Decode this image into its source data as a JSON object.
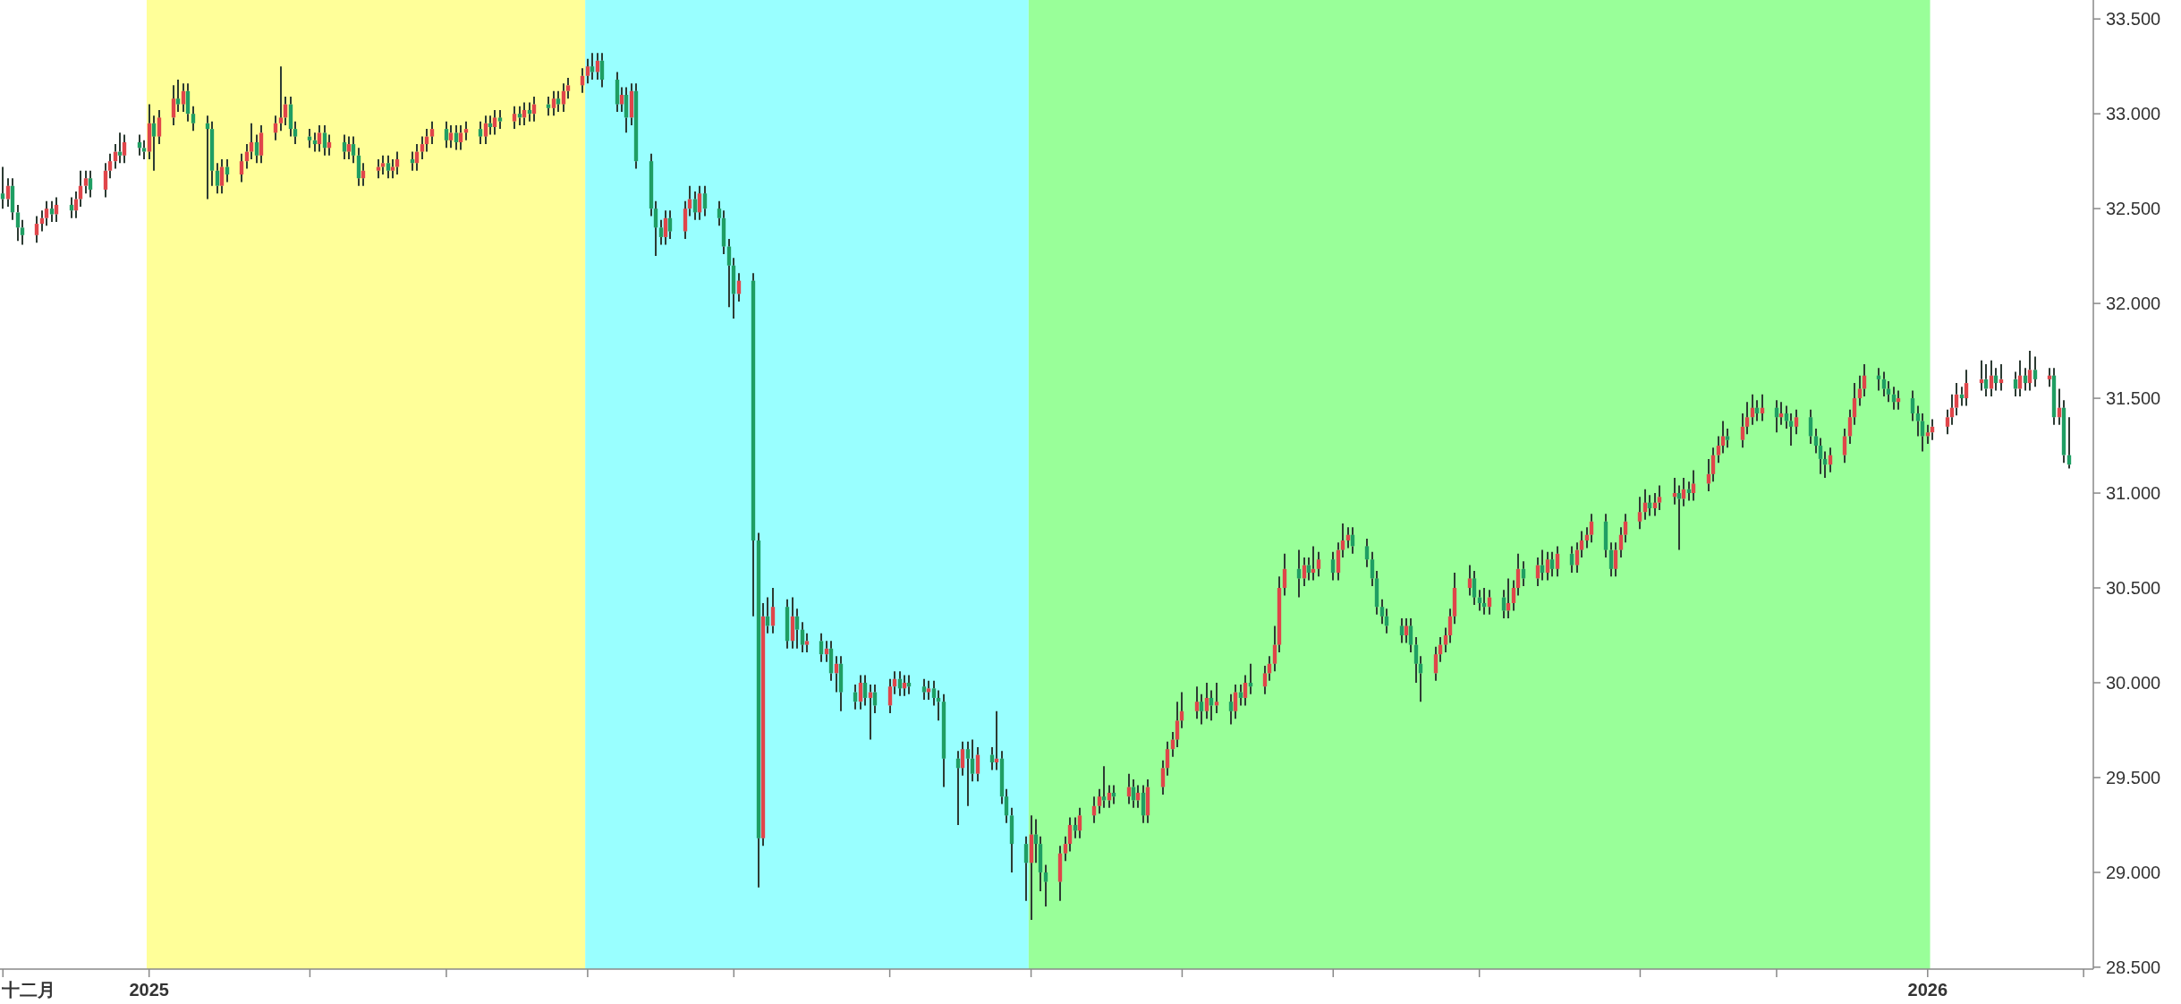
{
  "chart_data": {
    "type": "candlestick",
    "x": [
      "2024-12-02",
      "2024-12-03",
      "2024-12-04",
      "2024-12-05",
      "2024-12-06",
      "2024-12-09",
      "2024-12-10",
      "2024-12-11",
      "2024-12-12",
      "2024-12-13",
      "2024-12-16",
      "2024-12-17",
      "2024-12-18",
      "2024-12-19",
      "2024-12-20",
      "2024-12-23",
      "2024-12-24",
      "2024-12-25",
      "2024-12-26",
      "2024-12-27",
      "2024-12-30",
      "2024-12-31",
      "2025-01-01",
      "2025-01-02",
      "2025-01-03",
      "2025-01-06",
      "2025-01-07",
      "2025-01-08",
      "2025-01-09",
      "2025-01-10",
      "2025-01-13",
      "2025-01-14",
      "2025-01-15",
      "2025-01-16",
      "2025-01-17",
      "2025-01-20",
      "2025-01-21",
      "2025-01-22",
      "2025-01-23",
      "2025-01-24",
      "2025-01-27",
      "2025-01-28",
      "2025-01-29",
      "2025-01-30",
      "2025-01-31",
      "2025-02-03",
      "2025-02-04",
      "2025-02-05",
      "2025-02-06",
      "2025-02-07",
      "2025-02-10",
      "2025-02-11",
      "2025-02-12",
      "2025-02-13",
      "2025-02-14",
      "2025-02-17",
      "2025-02-18",
      "2025-02-19",
      "2025-02-20",
      "2025-02-21",
      "2025-02-24",
      "2025-02-25",
      "2025-02-26",
      "2025-02-27",
      "2025-02-28",
      "2025-03-03",
      "2025-03-04",
      "2025-03-05",
      "2025-03-06",
      "2025-03-07",
      "2025-03-10",
      "2025-03-11",
      "2025-03-12",
      "2025-03-13",
      "2025-03-14",
      "2025-03-17",
      "2025-03-18",
      "2025-03-19",
      "2025-03-20",
      "2025-03-21",
      "2025-03-24",
      "2025-03-25",
      "2025-03-26",
      "2025-03-27",
      "2025-03-28",
      "2025-03-31",
      "2025-04-01",
      "2025-04-02",
      "2025-04-03",
      "2025-04-04",
      "2025-04-07",
      "2025-04-08",
      "2025-04-09",
      "2025-04-10",
      "2025-04-11",
      "2025-04-14",
      "2025-04-15",
      "2025-04-16",
      "2025-04-17",
      "2025-04-18",
      "2025-04-21",
      "2025-04-22",
      "2025-04-23",
      "2025-04-24",
      "2025-04-25",
      "2025-04-28",
      "2025-04-29",
      "2025-04-30",
      "2025-05-01",
      "2025-05-02",
      "2025-05-05",
      "2025-05-06",
      "2025-05-07",
      "2025-05-08",
      "2025-05-09",
      "2025-05-12",
      "2025-05-13",
      "2025-05-14",
      "2025-05-15",
      "2025-05-16",
      "2025-05-19",
      "2025-05-20",
      "2025-05-21",
      "2025-05-22",
      "2025-05-23",
      "2025-05-26",
      "2025-05-27",
      "2025-05-28",
      "2025-05-29",
      "2025-05-30",
      "2025-06-02",
      "2025-06-03",
      "2025-06-04",
      "2025-06-05",
      "2025-06-06",
      "2025-06-09",
      "2025-06-10",
      "2025-06-11",
      "2025-06-12",
      "2025-06-13",
      "2025-06-16",
      "2025-06-17",
      "2025-06-18",
      "2025-06-19",
      "2025-06-20",
      "2025-06-23",
      "2025-06-24",
      "2025-06-25",
      "2025-06-26",
      "2025-06-27",
      "2025-06-30",
      "2025-07-01",
      "2025-07-02",
      "2025-07-03",
      "2025-07-04",
      "2025-07-07",
      "2025-07-08",
      "2025-07-09",
      "2025-07-10",
      "2025-07-11",
      "2025-07-14",
      "2025-07-15",
      "2025-07-16",
      "2025-07-17",
      "2025-07-18",
      "2025-07-21",
      "2025-07-22",
      "2025-07-23",
      "2025-07-24",
      "2025-07-25",
      "2025-07-28",
      "2025-07-29",
      "2025-07-30",
      "2025-07-31",
      "2025-08-01",
      "2025-08-04",
      "2025-08-05",
      "2025-08-06",
      "2025-08-07",
      "2025-08-08",
      "2025-08-11",
      "2025-08-12",
      "2025-08-13",
      "2025-08-14",
      "2025-08-15",
      "2025-08-18",
      "2025-08-19",
      "2025-08-20",
      "2025-08-21",
      "2025-08-22",
      "2025-08-25",
      "2025-08-26",
      "2025-08-27",
      "2025-08-28",
      "2025-08-29",
      "2025-09-01",
      "2025-09-02",
      "2025-09-03",
      "2025-09-04",
      "2025-09-05",
      "2025-09-08",
      "2025-09-09",
      "2025-09-10",
      "2025-09-11",
      "2025-09-12",
      "2025-09-15",
      "2025-09-16",
      "2025-09-17",
      "2025-09-18",
      "2025-09-19",
      "2025-09-22",
      "2025-09-23",
      "2025-09-24",
      "2025-09-25",
      "2025-09-26",
      "2025-09-29",
      "2025-09-30",
      "2025-10-01",
      "2025-10-02",
      "2025-10-03",
      "2025-10-06",
      "2025-10-07",
      "2025-10-08",
      "2025-10-09",
      "2025-10-10",
      "2025-10-13",
      "2025-10-14",
      "2025-10-15",
      "2025-10-16",
      "2025-10-17",
      "2025-10-20",
      "2025-10-21",
      "2025-10-22",
      "2025-10-23",
      "2025-10-24",
      "2025-10-27",
      "2025-10-28",
      "2025-10-29",
      "2025-10-30",
      "2025-10-31",
      "2025-11-03",
      "2025-11-04",
      "2025-11-05",
      "2025-11-06",
      "2025-11-07",
      "2025-11-10",
      "2025-11-11",
      "2025-11-12",
      "2025-11-13",
      "2025-11-14",
      "2025-11-17",
      "2025-11-18",
      "2025-11-19",
      "2025-11-20",
      "2025-11-21",
      "2025-11-24",
      "2025-11-25",
      "2025-11-26",
      "2025-11-27",
      "2025-11-28",
      "2025-12-01",
      "2025-12-02",
      "2025-12-03",
      "2025-12-04",
      "2025-12-05",
      "2025-12-08",
      "2025-12-09",
      "2025-12-10",
      "2025-12-11",
      "2025-12-12",
      "2025-12-15",
      "2025-12-16",
      "2025-12-17",
      "2025-12-18",
      "2025-12-19",
      "2025-12-22",
      "2025-12-23",
      "2025-12-24",
      "2025-12-25",
      "2025-12-26",
      "2025-12-29",
      "2025-12-30",
      "2025-12-31",
      "2026-01-01",
      "2026-01-02",
      "2026-01-05",
      "2026-01-06",
      "2026-01-07",
      "2026-01-08",
      "2026-01-09",
      "2026-01-12",
      "2026-01-13",
      "2026-01-14",
      "2026-01-15",
      "2026-01-16",
      "2026-01-19",
      "2026-01-20",
      "2026-01-21",
      "2026-01-22",
      "2026-01-23",
      "2026-01-26",
      "2026-01-27",
      "2026-01-28",
      "2026-01-29",
      "2026-01-30"
    ],
    "ohlc": [
      [
        32.58,
        32.72,
        32.5,
        32.55
      ],
      [
        32.55,
        32.66,
        32.51,
        32.62
      ],
      [
        32.62,
        32.66,
        32.44,
        32.48
      ],
      [
        32.48,
        32.52,
        32.33,
        32.4
      ],
      [
        32.4,
        32.44,
        32.31,
        32.36
      ],
      [
        32.36,
        32.46,
        32.32,
        32.42
      ],
      [
        32.42,
        32.49,
        32.38,
        32.45
      ],
      [
        32.45,
        32.54,
        32.41,
        32.5
      ],
      [
        32.5,
        32.54,
        32.43,
        32.47
      ],
      [
        32.47,
        32.56,
        32.43,
        32.52
      ],
      [
        32.52,
        32.56,
        32.45,
        32.49
      ],
      [
        32.49,
        32.59,
        32.45,
        32.55
      ],
      [
        32.55,
        32.7,
        32.51,
        32.62
      ],
      [
        32.62,
        32.7,
        32.58,
        32.66
      ],
      [
        32.66,
        32.7,
        32.56,
        32.6
      ],
      [
        32.6,
        32.74,
        32.56,
        32.7
      ],
      [
        32.7,
        32.79,
        32.66,
        32.75
      ],
      [
        32.75,
        32.84,
        32.71,
        32.8
      ],
      [
        32.8,
        32.9,
        32.74,
        32.78
      ],
      [
        32.78,
        32.89,
        32.74,
        32.85
      ],
      [
        32.85,
        32.89,
        32.78,
        32.82
      ],
      [
        32.82,
        32.86,
        32.76,
        32.8
      ],
      [
        32.8,
        33.05,
        32.76,
        32.95
      ],
      [
        32.95,
        32.99,
        32.7,
        32.88
      ],
      [
        32.88,
        33.02,
        32.84,
        32.98
      ],
      [
        32.98,
        33.15,
        32.94,
        33.08
      ],
      [
        33.08,
        33.18,
        33.01,
        33.05
      ],
      [
        33.05,
        33.16,
        33.01,
        33.12
      ],
      [
        33.12,
        33.16,
        32.96,
        33.0
      ],
      [
        33.0,
        33.04,
        32.91,
        32.95
      ],
      [
        32.95,
        32.99,
        32.55,
        32.92
      ],
      [
        32.92,
        32.96,
        32.62,
        32.7
      ],
      [
        32.7,
        32.74,
        32.58,
        32.62
      ],
      [
        32.62,
        32.76,
        32.58,
        32.72
      ],
      [
        32.72,
        32.76,
        32.64,
        32.68
      ],
      [
        32.68,
        32.79,
        32.64,
        32.75
      ],
      [
        32.75,
        32.84,
        32.71,
        32.8
      ],
      [
        32.8,
        32.95,
        32.76,
        32.85
      ],
      [
        32.85,
        32.89,
        32.74,
        32.78
      ],
      [
        32.78,
        32.94,
        32.74,
        32.9
      ],
      [
        32.9,
        32.99,
        32.86,
        32.95
      ],
      [
        32.95,
        33.25,
        32.91,
        32.98
      ],
      [
        32.98,
        33.09,
        32.94,
        33.05
      ],
      [
        33.05,
        33.09,
        32.88,
        32.92
      ],
      [
        32.92,
        32.96,
        32.84,
        32.88
      ],
      [
        32.88,
        32.92,
        32.82,
        32.86
      ],
      [
        32.86,
        32.9,
        32.8,
        32.84
      ],
      [
        32.84,
        32.94,
        32.8,
        32.9
      ],
      [
        32.9,
        32.94,
        32.78,
        32.82
      ],
      [
        32.82,
        32.89,
        32.78,
        32.85
      ],
      [
        32.85,
        32.89,
        32.76,
        32.8
      ],
      [
        32.8,
        32.88,
        32.76,
        32.84
      ],
      [
        32.84,
        32.88,
        32.74,
        32.78
      ],
      [
        32.78,
        32.82,
        32.62,
        32.66
      ],
      [
        32.66,
        32.74,
        32.62,
        32.7
      ],
      [
        32.7,
        32.76,
        32.66,
        32.72
      ],
      [
        32.72,
        32.78,
        32.68,
        32.74
      ],
      [
        32.74,
        32.78,
        32.66,
        32.7
      ],
      [
        32.7,
        32.76,
        32.66,
        32.72
      ],
      [
        32.72,
        32.8,
        32.68,
        32.76
      ],
      [
        32.76,
        32.8,
        32.7,
        32.74
      ],
      [
        32.74,
        32.84,
        32.7,
        32.8
      ],
      [
        32.8,
        32.88,
        32.76,
        32.84
      ],
      [
        32.84,
        32.92,
        32.8,
        32.88
      ],
      [
        32.88,
        32.96,
        32.84,
        32.92
      ],
      [
        32.92,
        32.96,
        32.82,
        32.86
      ],
      [
        32.86,
        32.94,
        32.82,
        32.9
      ],
      [
        32.9,
        32.94,
        32.81,
        32.85
      ],
      [
        32.85,
        32.94,
        32.81,
        32.9
      ],
      [
        32.9,
        32.96,
        32.86,
        32.92
      ],
      [
        32.92,
        32.96,
        32.84,
        32.88
      ],
      [
        32.88,
        32.99,
        32.84,
        32.95
      ],
      [
        32.95,
        32.99,
        32.89,
        32.93
      ],
      [
        32.93,
        33.02,
        32.89,
        32.98
      ],
      [
        32.98,
        33.02,
        32.92,
        32.96
      ],
      [
        32.96,
        33.04,
        32.92,
        33.0
      ],
      [
        33.0,
        33.04,
        32.94,
        32.98
      ],
      [
        32.98,
        33.06,
        32.94,
        33.02
      ],
      [
        33.02,
        33.06,
        32.96,
        33.0
      ],
      [
        33.0,
        33.09,
        32.96,
        33.05
      ],
      [
        33.05,
        33.09,
        32.99,
        33.03
      ],
      [
        33.03,
        33.12,
        32.99,
        33.08
      ],
      [
        33.08,
        33.12,
        33.01,
        33.05
      ],
      [
        33.05,
        33.16,
        33.01,
        33.12
      ],
      [
        33.12,
        33.19,
        33.08,
        33.15
      ],
      [
        33.15,
        33.24,
        33.11,
        33.2
      ],
      [
        33.2,
        33.29,
        33.16,
        33.25
      ],
      [
        33.25,
        33.32,
        33.18,
        33.22
      ],
      [
        33.22,
        33.32,
        33.18,
        33.28
      ],
      [
        33.28,
        33.32,
        33.14,
        33.18
      ],
      [
        33.18,
        33.22,
        33.01,
        33.05
      ],
      [
        33.05,
        33.14,
        33.01,
        33.1
      ],
      [
        33.1,
        33.14,
        32.9,
        32.98
      ],
      [
        32.98,
        33.16,
        32.94,
        33.12
      ],
      [
        33.12,
        33.16,
        32.71,
        32.75
      ],
      [
        32.75,
        32.79,
        32.46,
        32.5
      ],
      [
        32.5,
        32.54,
        32.25,
        32.4
      ],
      [
        32.4,
        32.44,
        32.31,
        32.35
      ],
      [
        32.35,
        32.49,
        32.31,
        32.45
      ],
      [
        32.45,
        32.49,
        32.34,
        32.38
      ],
      [
        32.38,
        32.54,
        32.34,
        32.5
      ],
      [
        32.5,
        32.62,
        32.46,
        32.55
      ],
      [
        32.55,
        32.59,
        32.44,
        32.48
      ],
      [
        32.48,
        32.62,
        32.44,
        32.58
      ],
      [
        32.58,
        32.62,
        32.46,
        32.5
      ],
      [
        32.5,
        32.54,
        32.41,
        32.45
      ],
      [
        32.45,
        32.49,
        32.26,
        32.3
      ],
      [
        32.3,
        32.34,
        31.98,
        32.2
      ],
      [
        32.2,
        32.24,
        31.92,
        32.05
      ],
      [
        32.05,
        32.16,
        32.01,
        32.12
      ],
      [
        32.12,
        32.16,
        30.35,
        30.75
      ],
      [
        30.75,
        30.79,
        28.92,
        29.18
      ],
      [
        29.18,
        30.42,
        29.14,
        30.35
      ],
      [
        30.35,
        30.45,
        30.26,
        30.3
      ],
      [
        30.3,
        30.5,
        30.26,
        30.4
      ],
      [
        30.4,
        30.44,
        30.18,
        30.22
      ],
      [
        30.22,
        30.45,
        30.18,
        30.35
      ],
      [
        30.35,
        30.39,
        30.18,
        30.28
      ],
      [
        30.28,
        30.32,
        30.16,
        30.2
      ],
      [
        30.2,
        30.26,
        30.16,
        30.22
      ],
      [
        30.22,
        30.26,
        30.11,
        30.15
      ],
      [
        30.15,
        30.22,
        30.11,
        30.18
      ],
      [
        30.18,
        30.22,
        30.01,
        30.05
      ],
      [
        30.05,
        30.14,
        29.95,
        30.1
      ],
      [
        30.1,
        30.14,
        29.85,
        29.95
      ],
      [
        29.95,
        29.99,
        29.86,
        29.9
      ],
      [
        29.9,
        30.04,
        29.86,
        30.0
      ],
      [
        30.0,
        30.04,
        29.88,
        29.92
      ],
      [
        29.92,
        29.99,
        29.7,
        29.95
      ],
      [
        29.95,
        29.99,
        29.84,
        29.88
      ],
      [
        29.88,
        30.02,
        29.84,
        29.98
      ],
      [
        29.98,
        30.06,
        29.94,
        30.02
      ],
      [
        30.02,
        30.06,
        29.93,
        29.97
      ],
      [
        29.97,
        30.04,
        29.93,
        30.0
      ],
      [
        30.0,
        30.04,
        29.94,
        29.98
      ],
      [
        29.98,
        30.02,
        29.91,
        29.95
      ],
      [
        29.95,
        30.01,
        29.91,
        29.97
      ],
      [
        29.97,
        30.01,
        29.88,
        29.92
      ],
      [
        29.92,
        29.96,
        29.8,
        29.9
      ],
      [
        29.9,
        29.94,
        29.45,
        29.6
      ],
      [
        29.6,
        29.64,
        29.25,
        29.55
      ],
      [
        29.55,
        29.69,
        29.51,
        29.65
      ],
      [
        29.65,
        29.69,
        29.35,
        29.6
      ],
      [
        29.6,
        29.7,
        29.48,
        29.52
      ],
      [
        29.52,
        29.66,
        29.48,
        29.62
      ],
      [
        29.62,
        29.66,
        29.54,
        29.58
      ],
      [
        29.58,
        29.85,
        29.54,
        29.6
      ],
      [
        29.6,
        29.64,
        29.36,
        29.4
      ],
      [
        29.4,
        29.44,
        29.26,
        29.3
      ],
      [
        29.3,
        29.34,
        29.0,
        29.15
      ],
      [
        29.15,
        29.19,
        28.85,
        29.05
      ],
      [
        29.05,
        29.3,
        28.75,
        29.2
      ],
      [
        29.2,
        29.28,
        29.05,
        29.15
      ],
      [
        29.15,
        29.19,
        28.9,
        29.0
      ],
      [
        29.0,
        29.04,
        28.82,
        28.95
      ],
      [
        28.95,
        29.14,
        28.85,
        29.1
      ],
      [
        29.1,
        29.19,
        29.06,
        29.15
      ],
      [
        29.15,
        29.29,
        29.11,
        29.25
      ],
      [
        29.25,
        29.29,
        29.18,
        29.22
      ],
      [
        29.22,
        29.34,
        29.18,
        29.3
      ],
      [
        29.3,
        29.4,
        29.26,
        29.35
      ],
      [
        29.35,
        29.44,
        29.31,
        29.4
      ],
      [
        29.4,
        29.56,
        29.34,
        29.38
      ],
      [
        29.38,
        29.46,
        29.34,
        29.42
      ],
      [
        29.42,
        29.46,
        29.36,
        29.4
      ],
      [
        29.4,
        29.52,
        29.36,
        29.45
      ],
      [
        29.45,
        29.49,
        29.34,
        29.38
      ],
      [
        29.38,
        29.46,
        29.34,
        29.42
      ],
      [
        29.42,
        29.46,
        29.26,
        29.3
      ],
      [
        29.3,
        29.49,
        29.26,
        29.45
      ],
      [
        29.45,
        29.59,
        29.41,
        29.55
      ],
      [
        29.55,
        29.69,
        29.51,
        29.65
      ],
      [
        29.65,
        29.74,
        29.61,
        29.7
      ],
      [
        29.7,
        29.9,
        29.66,
        29.8
      ],
      [
        29.8,
        29.95,
        29.76,
        29.85
      ],
      [
        29.85,
        29.98,
        29.81,
        29.9
      ],
      [
        29.9,
        29.94,
        29.78,
        29.85
      ],
      [
        29.85,
        30.0,
        29.81,
        29.92
      ],
      [
        29.92,
        29.96,
        29.8,
        29.88
      ],
      [
        29.88,
        30.0,
        29.84,
        29.9
      ],
      [
        29.9,
        29.94,
        29.78,
        29.85
      ],
      [
        29.85,
        29.99,
        29.81,
        29.95
      ],
      [
        29.95,
        29.99,
        29.88,
        29.92
      ],
      [
        29.92,
        30.04,
        29.88,
        30.0
      ],
      [
        30.0,
        30.1,
        29.94,
        29.98
      ],
      [
        29.98,
        30.09,
        29.94,
        30.05
      ],
      [
        30.05,
        30.14,
        30.01,
        30.1
      ],
      [
        30.1,
        30.3,
        30.06,
        30.2
      ],
      [
        30.2,
        30.56,
        30.16,
        30.5
      ],
      [
        30.5,
        30.68,
        30.46,
        30.6
      ],
      [
        30.6,
        30.7,
        30.45,
        30.55
      ],
      [
        30.55,
        30.66,
        30.51,
        30.62
      ],
      [
        30.62,
        30.66,
        30.54,
        30.58
      ],
      [
        30.58,
        30.72,
        30.54,
        30.6
      ],
      [
        30.6,
        30.69,
        30.56,
        30.65
      ],
      [
        30.65,
        30.69,
        30.54,
        30.58
      ],
      [
        30.58,
        30.74,
        30.54,
        30.7
      ],
      [
        30.7,
        30.84,
        30.66,
        30.75
      ],
      [
        30.75,
        30.82,
        30.71,
        30.78
      ],
      [
        30.78,
        30.82,
        30.68,
        30.72
      ],
      [
        30.72,
        30.76,
        30.61,
        30.65
      ],
      [
        30.65,
        30.69,
        30.51,
        30.55
      ],
      [
        30.55,
        30.59,
        30.36,
        30.4
      ],
      [
        30.4,
        30.44,
        30.31,
        30.35
      ],
      [
        30.35,
        30.39,
        30.26,
        30.3
      ],
      [
        30.3,
        30.34,
        30.21,
        30.25
      ],
      [
        30.25,
        30.34,
        30.21,
        30.3
      ],
      [
        30.3,
        30.34,
        30.16,
        30.2
      ],
      [
        30.2,
        30.24,
        30.0,
        30.1
      ],
      [
        30.1,
        30.14,
        29.9,
        30.05
      ],
      [
        30.05,
        30.19,
        30.01,
        30.15
      ],
      [
        30.15,
        30.24,
        30.11,
        30.2
      ],
      [
        30.2,
        30.29,
        30.16,
        30.25
      ],
      [
        30.25,
        30.39,
        30.21,
        30.35
      ],
      [
        30.35,
        30.58,
        30.31,
        30.5
      ],
      [
        30.5,
        30.62,
        30.46,
        30.55
      ],
      [
        30.55,
        30.59,
        30.41,
        30.45
      ],
      [
        30.45,
        30.49,
        30.38,
        30.42
      ],
      [
        30.42,
        30.5,
        30.36,
        30.4
      ],
      [
        30.4,
        30.49,
        30.36,
        30.45
      ],
      [
        30.45,
        30.49,
        30.34,
        30.38
      ],
      [
        30.38,
        30.55,
        30.34,
        30.42
      ],
      [
        30.42,
        30.54,
        30.38,
        30.5
      ],
      [
        30.5,
        30.68,
        30.46,
        30.6
      ],
      [
        30.6,
        30.64,
        30.51,
        30.55
      ],
      [
        30.55,
        30.66,
        30.51,
        30.62
      ],
      [
        30.62,
        30.7,
        30.54,
        30.58
      ],
      [
        30.58,
        30.69,
        30.54,
        30.65
      ],
      [
        30.65,
        30.69,
        30.56,
        30.6
      ],
      [
        30.6,
        30.72,
        30.56,
        30.68
      ],
      [
        30.68,
        30.72,
        30.58,
        30.62
      ],
      [
        30.62,
        30.74,
        30.58,
        30.7
      ],
      [
        30.7,
        30.8,
        30.66,
        30.75
      ],
      [
        30.75,
        30.82,
        30.71,
        30.78
      ],
      [
        30.78,
        30.89,
        30.74,
        30.85
      ],
      [
        30.85,
        30.89,
        30.66,
        30.7
      ],
      [
        30.7,
        30.74,
        30.56,
        30.6
      ],
      [
        30.6,
        30.74,
        30.56,
        30.7
      ],
      [
        30.7,
        30.82,
        30.66,
        30.78
      ],
      [
        30.78,
        30.89,
        30.74,
        30.85
      ],
      [
        30.85,
        30.98,
        30.81,
        30.9
      ],
      [
        30.9,
        31.02,
        30.86,
        30.95
      ],
      [
        30.95,
        30.99,
        30.88,
        30.92
      ],
      [
        30.92,
        31.0,
        30.88,
        30.95
      ],
      [
        30.95,
        31.04,
        30.91,
        30.98
      ],
      [
        30.98,
        31.08,
        30.94,
        31.0
      ],
      [
        31.0,
        31.04,
        30.7,
        30.97
      ],
      [
        30.97,
        31.08,
        30.93,
        31.02
      ],
      [
        31.02,
        31.06,
        30.96,
        31.0
      ],
      [
        31.0,
        31.12,
        30.96,
        31.05
      ],
      [
        31.05,
        31.18,
        31.01,
        31.1
      ],
      [
        31.1,
        31.24,
        31.06,
        31.2
      ],
      [
        31.2,
        31.3,
        31.16,
        31.25
      ],
      [
        31.25,
        31.38,
        31.21,
        31.3
      ],
      [
        31.3,
        31.34,
        31.24,
        31.28
      ],
      [
        31.28,
        31.42,
        31.24,
        31.35
      ],
      [
        31.35,
        31.48,
        31.31,
        31.4
      ],
      [
        31.4,
        31.52,
        31.36,
        31.45
      ],
      [
        31.45,
        31.49,
        31.38,
        31.42
      ],
      [
        31.42,
        31.52,
        31.38,
        31.45
      ],
      [
        31.45,
        31.49,
        31.32,
        31.4
      ],
      [
        31.4,
        31.48,
        31.36,
        31.42
      ],
      [
        31.42,
        31.46,
        31.34,
        31.38
      ],
      [
        31.38,
        31.42,
        31.25,
        31.35
      ],
      [
        31.35,
        31.44,
        31.31,
        31.4
      ],
      [
        31.4,
        31.44,
        31.26,
        31.3
      ],
      [
        31.3,
        31.34,
        31.21,
        31.25
      ],
      [
        31.25,
        31.29,
        31.1,
        31.18
      ],
      [
        31.18,
        31.22,
        31.08,
        31.15
      ],
      [
        31.15,
        31.24,
        31.11,
        31.2
      ],
      [
        31.2,
        31.34,
        31.16,
        31.3
      ],
      [
        31.3,
        31.44,
        31.26,
        31.4
      ],
      [
        31.4,
        31.58,
        31.36,
        31.5
      ],
      [
        31.5,
        31.62,
        31.46,
        31.55
      ],
      [
        31.55,
        31.68,
        31.51,
        31.62
      ],
      [
        31.62,
        31.66,
        31.54,
        31.6
      ],
      [
        31.6,
        31.64,
        31.51,
        31.55
      ],
      [
        31.55,
        31.59,
        31.48,
        31.52
      ],
      [
        31.52,
        31.56,
        31.44,
        31.48
      ],
      [
        31.48,
        31.54,
        31.44,
        31.5
      ],
      [
        31.5,
        31.54,
        31.38,
        31.42
      ],
      [
        31.42,
        31.46,
        31.3,
        31.38
      ],
      [
        31.38,
        31.42,
        31.22,
        31.3
      ],
      [
        31.3,
        31.36,
        31.26,
        31.32
      ],
      [
        31.32,
        31.39,
        31.28,
        31.35
      ],
      [
        31.35,
        31.44,
        31.31,
        31.4
      ],
      [
        31.4,
        31.52,
        31.36,
        31.45
      ],
      [
        31.45,
        31.58,
        31.41,
        31.52
      ],
      [
        31.52,
        31.56,
        31.46,
        31.5
      ],
      [
        31.5,
        31.65,
        31.46,
        31.58
      ],
      [
        31.58,
        31.7,
        31.54,
        31.6
      ],
      [
        31.6,
        31.68,
        31.51,
        31.55
      ],
      [
        31.55,
        31.7,
        31.51,
        31.62
      ],
      [
        31.62,
        31.66,
        31.54,
        31.58
      ],
      [
        31.58,
        31.68,
        31.54,
        31.6
      ],
      [
        31.6,
        31.64,
        31.51,
        31.55
      ],
      [
        31.55,
        31.7,
        31.51,
        31.62
      ],
      [
        31.62,
        31.66,
        31.54,
        31.58
      ],
      [
        31.58,
        31.75,
        31.54,
        31.65
      ],
      [
        31.65,
        31.72,
        31.56,
        31.6
      ],
      [
        31.6,
        31.66,
        31.56,
        31.62
      ],
      [
        31.62,
        31.66,
        31.36,
        31.4
      ],
      [
        31.4,
        31.55,
        31.36,
        31.45
      ],
      [
        31.45,
        31.49,
        31.16,
        31.2
      ],
      [
        31.2,
        31.4,
        31.13,
        31.15
      ]
    ],
    "xlim": [
      "2024-12-02",
      "2026-02-04"
    ],
    "xticks": [
      {
        "value": "2024-12-02",
        "label": "十二月"
      },
      {
        "value": "2025-01-01",
        "label": "2025"
      },
      {
        "value": "2025-02-03",
        "label": null
      },
      {
        "value": "2025-03-03",
        "label": null
      },
      {
        "value": "2025-04-01",
        "label": null
      },
      {
        "value": "2025-05-01",
        "label": null
      },
      {
        "value": "2025-06-02",
        "label": null
      },
      {
        "value": "2025-07-01",
        "label": null
      },
      {
        "value": "2025-08-01",
        "label": null
      },
      {
        "value": "2025-09-01",
        "label": null
      },
      {
        "value": "2025-10-01",
        "label": null
      },
      {
        "value": "2025-11-03",
        "label": null
      },
      {
        "value": "2025-12-01",
        "label": null
      },
      {
        "value": "2026-01-01",
        "label": "2026"
      },
      {
        "value": "2026-02-02",
        "label": null
      }
    ],
    "ylim": [
      28.49,
      33.6
    ],
    "yticks": [
      {
        "value": 28.5,
        "label": "28.500"
      },
      {
        "value": 29,
        "label": "29.000"
      },
      {
        "value": 29.5,
        "label": "29.500"
      },
      {
        "value": 30,
        "label": "30.000"
      },
      {
        "value": 30.5,
        "label": "30.500"
      },
      {
        "value": 31,
        "label": "31.000"
      },
      {
        "value": 31.5,
        "label": "31.500"
      },
      {
        "value": 32,
        "label": "32.000"
      },
      {
        "value": 32.5,
        "label": "32.500"
      },
      {
        "value": 33,
        "label": "33.000"
      },
      {
        "value": 33.5,
        "label": "33.500"
      }
    ],
    "bands": [
      {
        "axis": "x",
        "from": "2025-01-01",
        "to": "2025-04-01",
        "color": "#ffff99"
      },
      {
        "axis": "x",
        "from": "2025-04-01",
        "to": "2025-07-01",
        "color": "#99ffff"
      },
      {
        "axis": "x",
        "from": "2025-07-01",
        "to": "2026-01-02",
        "color": "#99ff99"
      }
    ]
  }
}
